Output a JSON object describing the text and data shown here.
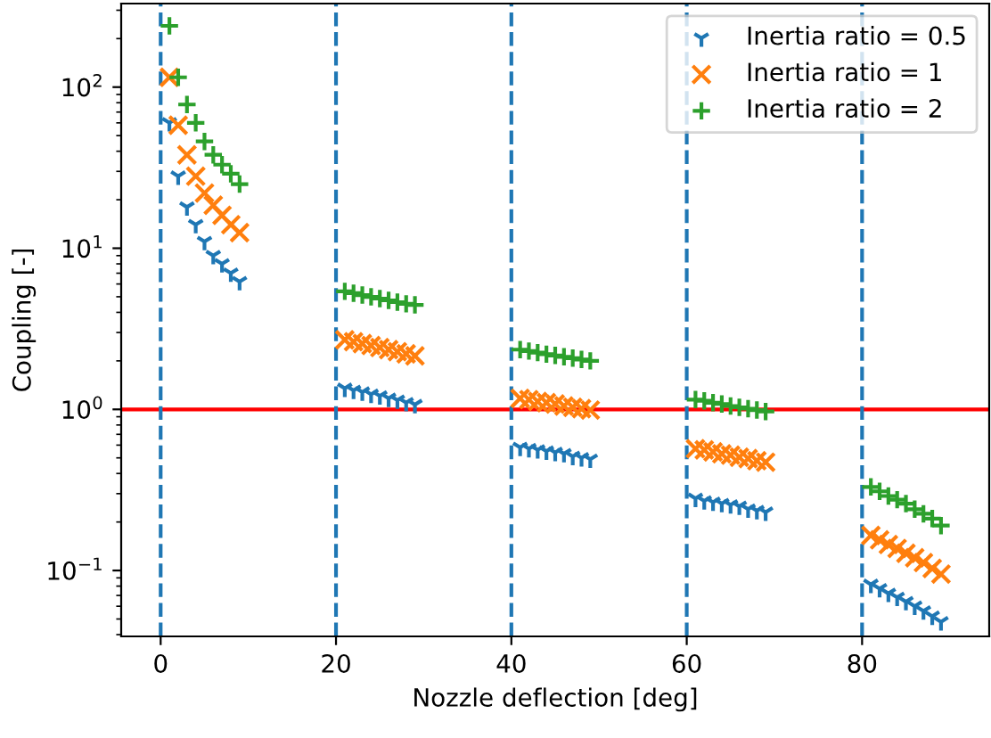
{
  "chart_data": {
    "type": "scatter",
    "xlabel": "Nozzle deflection [deg]",
    "ylabel": "Coupling [-]",
    "log": "y",
    "legend": "top right",
    "grid": false,
    "xlim": [
      -4.5,
      94.5
    ],
    "xticks": [
      0,
      20,
      40,
      60,
      80
    ],
    "ylim": [
      0.039,
      330
    ],
    "yticks": [
      {
        "value": 0.1,
        "label": "10$^{−1}$"
      },
      {
        "value": 1,
        "label": "10$^{0}$"
      },
      {
        "value": 10,
        "label": "10$^{1}$"
      },
      {
        "value": 100,
        "label": "10$^{2}$"
      }
    ],
    "x": [
      1,
      2,
      3,
      4,
      5,
      6,
      7,
      8,
      9,
      21,
      22,
      23,
      24,
      25,
      26,
      27,
      28,
      29,
      41,
      42,
      43,
      44,
      45,
      46,
      47,
      48,
      49,
      61,
      62,
      63,
      64,
      65,
      66,
      67,
      68,
      69,
      81,
      82,
      83,
      84,
      85,
      86,
      87,
      88,
      89
    ],
    "series": [
      {
        "name": "Inertia ratio = 0.5",
        "color": "#1f77b4",
        "values": [
          60,
          28,
          18,
          14,
          11,
          9,
          8,
          7,
          6.2,
          1.35,
          1.31,
          1.28,
          1.24,
          1.21,
          1.17,
          1.14,
          1.1,
          1.07,
          0.58,
          0.57,
          0.56,
          0.55,
          0.54,
          0.53,
          0.51,
          0.5,
          0.49,
          0.28,
          0.27,
          0.265,
          0.26,
          0.255,
          0.25,
          0.24,
          0.235,
          0.23,
          0.082,
          0.077,
          0.072,
          0.068,
          0.064,
          0.06,
          0.056,
          0.052,
          0.048
        ]
      },
      {
        "name": "Inertia ratio = 1",
        "color": "#ff7f0e",
        "marker": "cross",
        "values": [
          115,
          58,
          38,
          28,
          22,
          18.5,
          16,
          14,
          12.5,
          2.7,
          2.63,
          2.56,
          2.49,
          2.42,
          2.35,
          2.28,
          2.21,
          2.15,
          1.17,
          1.15,
          1.12,
          1.1,
          1.08,
          1.05,
          1.03,
          1.01,
          0.99,
          0.57,
          0.56,
          0.545,
          0.53,
          0.52,
          0.505,
          0.495,
          0.48,
          0.47,
          0.165,
          0.155,
          0.145,
          0.137,
          0.128,
          0.12,
          0.112,
          0.103,
          0.095
        ]
      },
      {
        "name": "Inertia ratio = 2",
        "color": "#2ca02c",
        "values": [
          240,
          115,
          78,
          60,
          46,
          38,
          33,
          29,
          25,
          5.4,
          5.26,
          5.12,
          4.99,
          4.87,
          4.75,
          4.63,
          4.52,
          4.45,
          2.35,
          2.3,
          2.25,
          2.2,
          2.16,
          2.12,
          2.08,
          2.04,
          2.0,
          1.15,
          1.13,
          1.1,
          1.08,
          1.05,
          1.03,
          1.01,
          0.99,
          0.97,
          0.33,
          0.31,
          0.29,
          0.275,
          0.26,
          0.24,
          0.225,
          0.21,
          0.19
        ]
      }
    ],
    "ref_lines": [
      {
        "axis": "y",
        "value": 1,
        "color": "#ff0000",
        "line_style": "solid"
      },
      {
        "axis": "x",
        "value": 0,
        "color": "#1f77b4",
        "line_style": "dashed"
      },
      {
        "axis": "x",
        "value": 20,
        "color": "#1f77b4",
        "line_style": "dashed"
      },
      {
        "axis": "x",
        "value": 40,
        "color": "#1f77b4",
        "line_style": "dashed"
      },
      {
        "axis": "x",
        "value": 60,
        "color": "#1f77b4",
        "line_style": "dashed"
      },
      {
        "axis": "x",
        "value": 80,
        "color": "#1f77b4",
        "line_style": "dashed"
      }
    ]
  }
}
